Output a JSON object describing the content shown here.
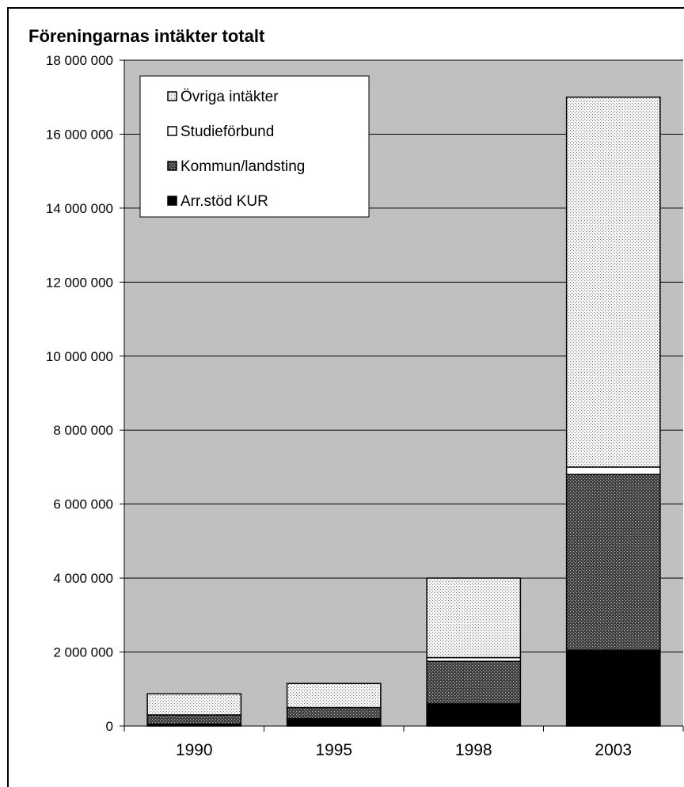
{
  "chart_data": {
    "type": "bar",
    "stacked": true,
    "title": "Föreningarnas intäkter totalt",
    "xlabel": "",
    "ylabel": "",
    "categories": [
      "1990",
      "1995",
      "1998",
      "2003"
    ],
    "ylim": [
      0,
      18000000
    ],
    "ytick_labels": [
      "0",
      "2 000 000",
      "4 000 000",
      "6 000 000",
      "8 000 000",
      "10 000 000",
      "12 000 000",
      "14 000 000",
      "16 000 000",
      "18 000 000"
    ],
    "ytick_values": [
      0,
      2000000,
      4000000,
      6000000,
      8000000,
      10000000,
      12000000,
      14000000,
      16000000,
      18000000
    ],
    "grid": true,
    "legend_position": "top-left",
    "series": [
      {
        "name": "Arr.stöd KUR",
        "values": [
          50000,
          200000,
          600000,
          2050000
        ],
        "pattern": "solid-black"
      },
      {
        "name": "Kommun/landsting",
        "values": [
          250000,
          300000,
          1150000,
          4750000
        ],
        "pattern": "dark-dots"
      },
      {
        "name": "Studieförbund",
        "values": [
          0,
          0,
          100000,
          200000
        ],
        "pattern": "white"
      },
      {
        "name": "Övriga intäkter",
        "values": [
          570000,
          650000,
          2150000,
          10000000
        ],
        "pattern": "light-dots"
      }
    ],
    "legend_order": [
      "Övriga intäkter",
      "Studieförbund",
      "Kommun/landsting",
      "Arr.stöd KUR"
    ],
    "colors": {
      "plot_bg": "#c0c0c0",
      "grid": "#000000",
      "black": "#000000",
      "white": "#ffffff"
    }
  }
}
